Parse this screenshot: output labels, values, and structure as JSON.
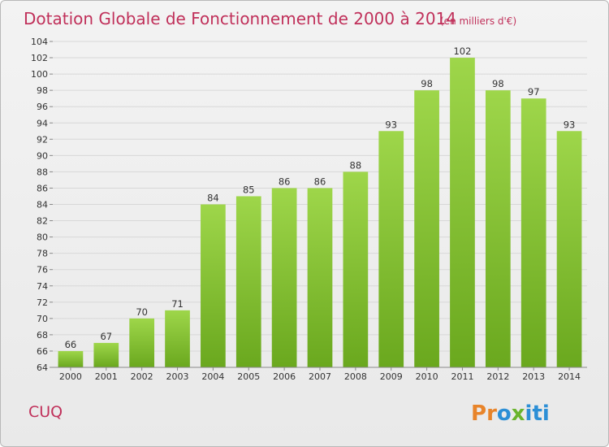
{
  "title": "Dotation Globale de Fonctionnement de 2000 à 2014",
  "subtitle": "(en milliers d'€)",
  "commune": "CUQ",
  "brand": {
    "letters": [
      "P",
      "r",
      "o",
      "x",
      "i",
      "t",
      "i"
    ],
    "colors": [
      "#e8842a",
      "#e8842a",
      "#2c8fd6",
      "#6ab42d",
      "#2c8fd6",
      "#2c8fd6",
      "#2c8fd6"
    ]
  },
  "colors": {
    "bar_top": "#9ed64a",
    "bar_bottom": "#6aa81e",
    "title": "#c0305a",
    "grid": "#d8d8d8"
  },
  "chart_data": {
    "type": "bar",
    "categories": [
      "2000",
      "2001",
      "2002",
      "2003",
      "2004",
      "2005",
      "2006",
      "2007",
      "2008",
      "2009",
      "2010",
      "2011",
      "2012",
      "2013",
      "2014"
    ],
    "values": [
      66,
      67,
      70,
      71,
      84,
      85,
      86,
      86,
      88,
      93,
      98,
      102,
      98,
      97,
      93
    ],
    "data_labels": [
      "66",
      "67",
      "70",
      "71",
      "84",
      "85",
      "86",
      "86",
      "88",
      "93",
      "98",
      "102",
      "98",
      "97",
      "93"
    ],
    "yticks": [
      "64",
      "66",
      "68",
      "70",
      "72",
      "74",
      "76",
      "78",
      "80",
      "82",
      "84",
      "86",
      "88",
      "90",
      "92",
      "94",
      "96",
      "98",
      "100",
      "102",
      "104"
    ],
    "ylim": [
      64,
      104
    ],
    "grid": true,
    "xlabel": "",
    "ylabel": ""
  }
}
